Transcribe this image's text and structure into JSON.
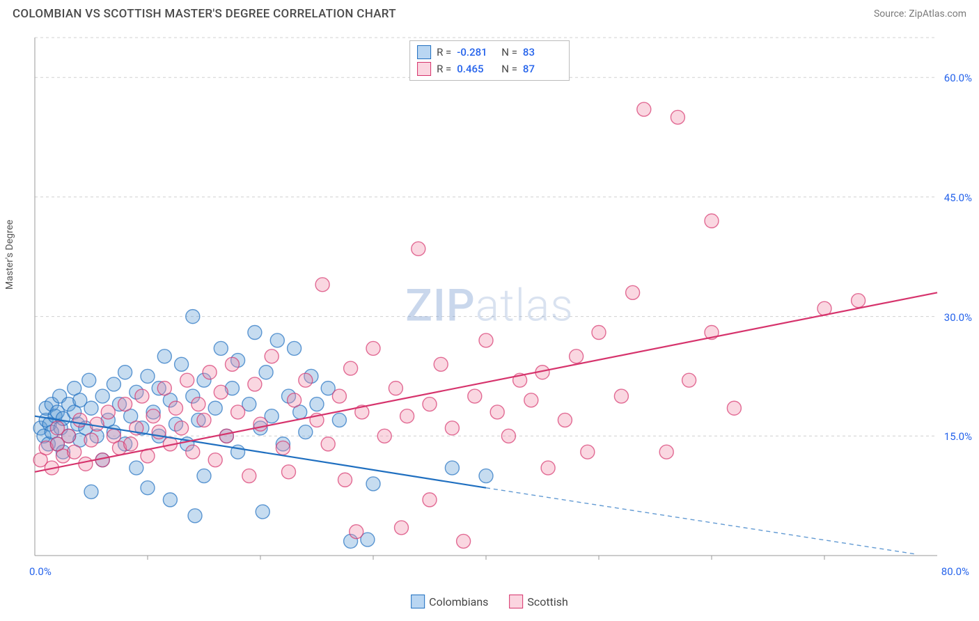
{
  "title": "COLOMBIAN VS SCOTTISH MASTER'S DEGREE CORRELATION CHART",
  "source": "Source: ZipAtlas.com",
  "ylabel": "Master's Degree",
  "watermark_zip": "ZIP",
  "watermark_rest": "atlas",
  "chart": {
    "type": "scatter",
    "background_color": "#ffffff",
    "grid_color": "#d0d0d0",
    "axis_line_color": "#9a9a9a",
    "tick_color": "#9a9a9a",
    "axis_text_color": "#2563eb",
    "xlim": [
      0,
      80
    ],
    "ylim": [
      0,
      65
    ],
    "x_tick_step": 10,
    "y_grid_lines": [
      15,
      30,
      45,
      60,
      65
    ],
    "x_min_label": "0.0%",
    "x_max_label": "80.0%",
    "y_tick_labels": [
      {
        "v": 15,
        "label": "15.0%"
      },
      {
        "v": 30,
        "label": "30.0%"
      },
      {
        "v": 45,
        "label": "45.0%"
      },
      {
        "v": 60,
        "label": "60.0%"
      }
    ],
    "marker_radius": 10,
    "marker_fill_opacity": 0.35,
    "marker_stroke_width": 1.4,
    "line_width": 2.2,
    "series": [
      {
        "id": "colombians",
        "label": "Colombians",
        "color": "#5b9bd5",
        "stroke_color": "#1f6fc0",
        "R": "-0.281",
        "N": "83",
        "trend": {
          "x1": 0,
          "y1": 17.5,
          "x2": 40,
          "y2": 8.5
        },
        "trend_ext_dashed": {
          "x1": 40,
          "y1": 8.5,
          "x2": 78,
          "y2": 0.2
        },
        "points": [
          [
            0.5,
            16
          ],
          [
            0.8,
            15
          ],
          [
            1,
            17
          ],
          [
            1,
            18.5
          ],
          [
            1.2,
            14
          ],
          [
            1.3,
            16.5
          ],
          [
            1.5,
            19
          ],
          [
            1.5,
            15.5
          ],
          [
            1.8,
            17.5
          ],
          [
            2,
            18
          ],
          [
            2,
            14
          ],
          [
            2.2,
            20
          ],
          [
            2.3,
            16
          ],
          [
            2.5,
            17.2
          ],
          [
            2.5,
            13
          ],
          [
            3,
            19
          ],
          [
            3,
            15
          ],
          [
            3.5,
            18
          ],
          [
            3.5,
            21
          ],
          [
            3.8,
            16.5
          ],
          [
            4,
            14.5
          ],
          [
            4,
            19.5
          ],
          [
            4.5,
            16
          ],
          [
            4.8,
            22
          ],
          [
            5,
            18.5
          ],
          [
            5,
            8
          ],
          [
            5.5,
            15
          ],
          [
            6,
            20
          ],
          [
            6,
            12
          ],
          [
            6.5,
            17
          ],
          [
            7,
            21.5
          ],
          [
            7,
            15.5
          ],
          [
            7.5,
            19
          ],
          [
            8,
            23
          ],
          [
            8,
            14
          ],
          [
            8.5,
            17.5
          ],
          [
            9,
            20.5
          ],
          [
            9,
            11
          ],
          [
            9.5,
            16
          ],
          [
            10,
            22.5
          ],
          [
            10,
            8.5
          ],
          [
            10.5,
            18
          ],
          [
            11,
            21
          ],
          [
            11,
            15
          ],
          [
            11.5,
            25
          ],
          [
            12,
            19.5
          ],
          [
            12,
            7
          ],
          [
            12.5,
            16.5
          ],
          [
            13,
            24
          ],
          [
            13.5,
            14
          ],
          [
            14,
            20
          ],
          [
            14,
            30
          ],
          [
            14.2,
            5
          ],
          [
            14.5,
            17
          ],
          [
            15,
            22
          ],
          [
            15,
            10
          ],
          [
            16,
            18.5
          ],
          [
            16.5,
            26
          ],
          [
            17,
            15
          ],
          [
            17.5,
            21
          ],
          [
            18,
            24.5
          ],
          [
            18,
            13
          ],
          [
            19,
            19
          ],
          [
            19.5,
            28
          ],
          [
            20,
            16
          ],
          [
            20.2,
            5.5
          ],
          [
            20.5,
            23
          ],
          [
            21,
            17.5
          ],
          [
            21.5,
            27
          ],
          [
            22,
            14
          ],
          [
            22.5,
            20
          ],
          [
            23,
            26
          ],
          [
            23.5,
            18
          ],
          [
            24,
            15.5
          ],
          [
            24.5,
            22.5
          ],
          [
            25,
            19
          ],
          [
            26,
            21
          ],
          [
            27,
            17
          ],
          [
            28,
            1.8
          ],
          [
            29.5,
            2
          ],
          [
            30,
            9
          ],
          [
            37,
            11
          ],
          [
            40,
            10
          ]
        ]
      },
      {
        "id": "scottish",
        "label": "Scottish",
        "color": "#f08ca8",
        "stroke_color": "#d6336c",
        "R": "0.465",
        "N": "87",
        "trend": {
          "x1": 0,
          "y1": 10.5,
          "x2": 80,
          "y2": 33
        },
        "trend_ext_dashed": null,
        "points": [
          [
            0.5,
            12
          ],
          [
            1,
            13.5
          ],
          [
            1.5,
            11
          ],
          [
            2,
            14
          ],
          [
            2,
            16
          ],
          [
            2.5,
            12.5
          ],
          [
            3,
            15
          ],
          [
            3.5,
            13
          ],
          [
            4,
            17
          ],
          [
            4.5,
            11.5
          ],
          [
            5,
            14.5
          ],
          [
            5.5,
            16.5
          ],
          [
            6,
            12
          ],
          [
            6.5,
            18
          ],
          [
            7,
            15
          ],
          [
            7.5,
            13.5
          ],
          [
            8,
            19
          ],
          [
            8.5,
            14
          ],
          [
            9,
            16
          ],
          [
            9.5,
            20
          ],
          [
            10,
            12.5
          ],
          [
            10.5,
            17.5
          ],
          [
            11,
            15.5
          ],
          [
            11.5,
            21
          ],
          [
            12,
            14
          ],
          [
            12.5,
            18.5
          ],
          [
            13,
            16
          ],
          [
            13.5,
            22
          ],
          [
            14,
            13
          ],
          [
            14.5,
            19
          ],
          [
            15,
            17
          ],
          [
            15.5,
            23
          ],
          [
            16,
            12
          ],
          [
            16.5,
            20.5
          ],
          [
            17,
            15
          ],
          [
            17.5,
            24
          ],
          [
            18,
            18
          ],
          [
            19,
            10
          ],
          [
            19.5,
            21.5
          ],
          [
            20,
            16.5
          ],
          [
            21,
            25
          ],
          [
            22,
            13.5
          ],
          [
            22.5,
            10.5
          ],
          [
            23,
            19.5
          ],
          [
            24,
            22
          ],
          [
            25,
            17
          ],
          [
            25.5,
            34
          ],
          [
            26,
            14
          ],
          [
            27,
            20
          ],
          [
            27.5,
            9.5
          ],
          [
            28,
            23.5
          ],
          [
            28.5,
            3
          ],
          [
            29,
            18
          ],
          [
            30,
            26
          ],
          [
            31,
            15
          ],
          [
            32,
            21
          ],
          [
            32.5,
            3.5
          ],
          [
            33,
            17.5
          ],
          [
            34,
            38.5
          ],
          [
            35,
            19
          ],
          [
            35,
            7
          ],
          [
            36,
            24
          ],
          [
            37,
            16
          ],
          [
            38,
            1.8
          ],
          [
            39,
            20
          ],
          [
            40,
            27
          ],
          [
            41,
            18
          ],
          [
            42,
            15
          ],
          [
            43,
            22
          ],
          [
            44,
            19.5
          ],
          [
            45,
            23
          ],
          [
            45.5,
            11
          ],
          [
            47,
            17
          ],
          [
            48,
            25
          ],
          [
            49,
            13
          ],
          [
            50,
            28
          ],
          [
            52,
            20
          ],
          [
            53,
            33
          ],
          [
            54,
            56
          ],
          [
            56,
            13
          ],
          [
            57,
            55
          ],
          [
            58,
            22
          ],
          [
            60,
            42
          ],
          [
            60,
            28
          ],
          [
            62,
            18.5
          ],
          [
            70,
            31
          ],
          [
            73,
            32
          ]
        ]
      }
    ]
  },
  "bottom_legend": [
    {
      "swatch": "#b9d6f2",
      "border": "#1f6fc0",
      "label": "Colombians"
    },
    {
      "swatch": "#fbd5e0",
      "border": "#d6336c",
      "label": "Scottish"
    }
  ],
  "stats_legend": [
    {
      "swatch": "#b9d6f2",
      "border": "#1f6fc0",
      "R_label": "R =",
      "R": "-0.281",
      "N_label": "N =",
      "N": "83"
    },
    {
      "swatch": "#fbd5e0",
      "border": "#d6336c",
      "R_label": "R =",
      "R": "0.465",
      "N_label": "N =",
      "N": "87"
    }
  ]
}
